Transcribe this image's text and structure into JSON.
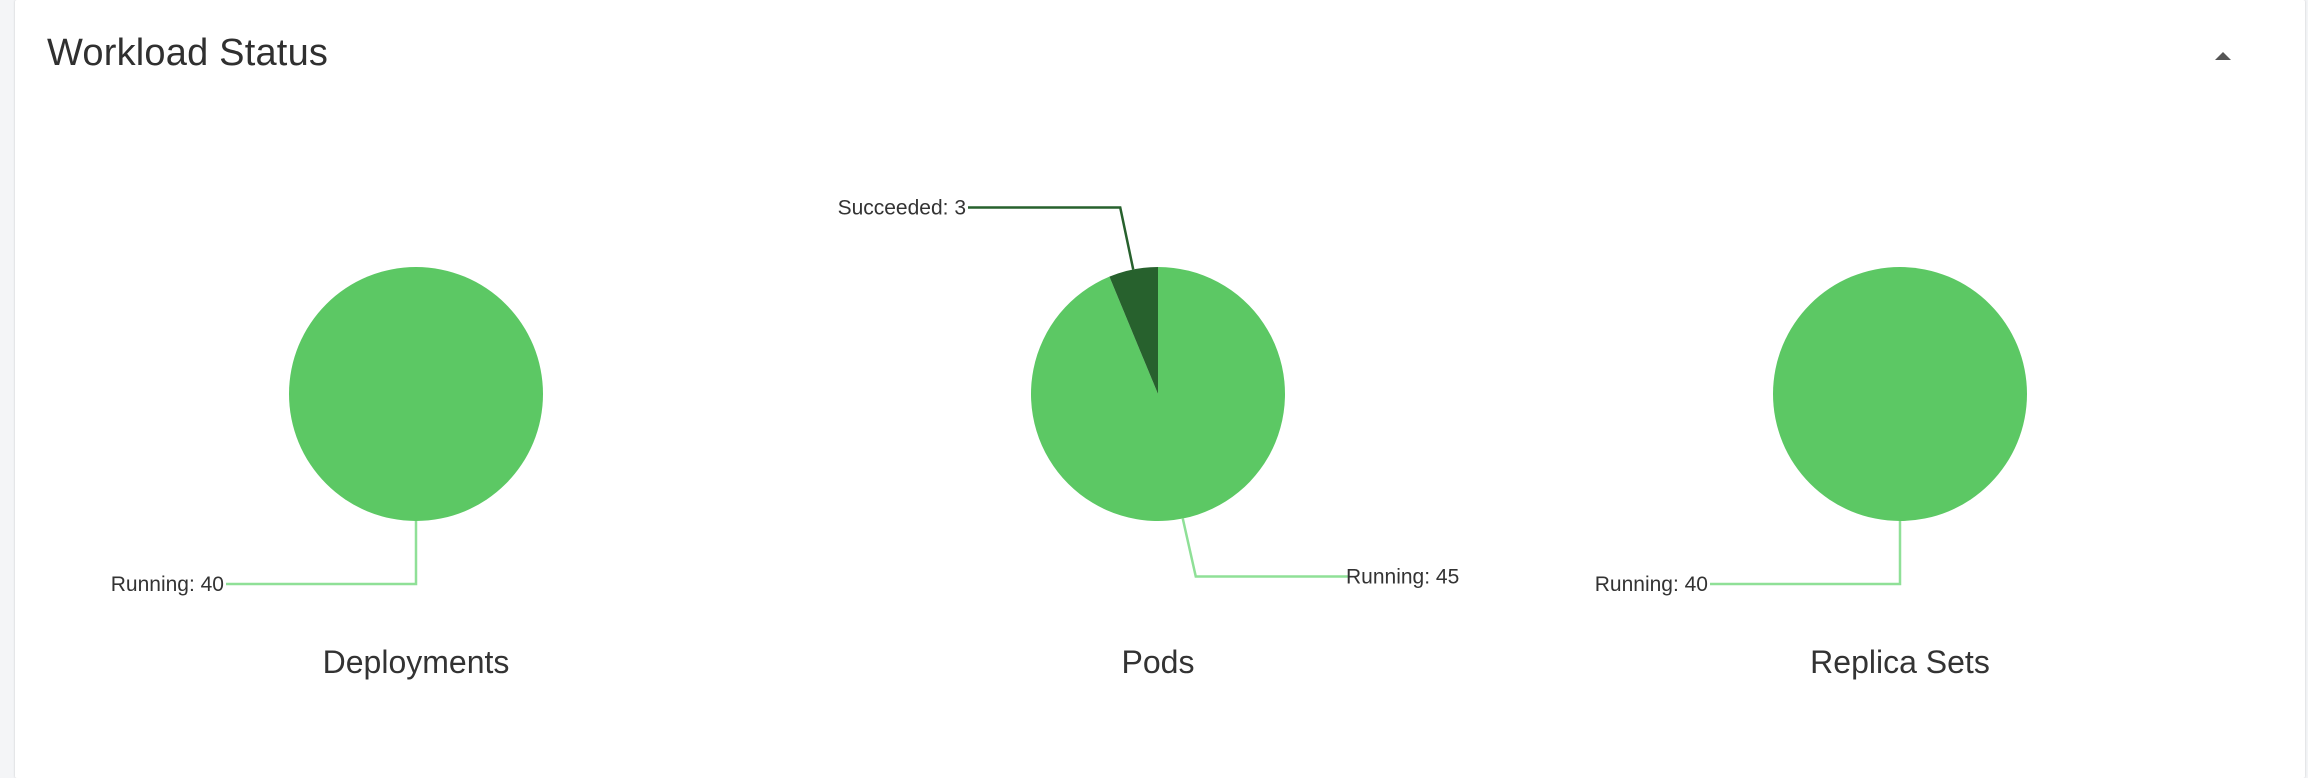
{
  "card": {
    "title": "Workload Status",
    "collapse_icon": "caret-up-icon"
  },
  "colors": {
    "running": "#5cc864",
    "succeeded": "#27612d",
    "running_leader": "#8fe097",
    "succeeded_leader": "#27612d"
  },
  "chart_data": [
    {
      "type": "pie",
      "title": "Deployments",
      "slices": [
        {
          "label": "Running",
          "value": 40
        }
      ]
    },
    {
      "type": "pie",
      "title": "Pods",
      "slices": [
        {
          "label": "Running",
          "value": 45
        },
        {
          "label": "Succeeded",
          "value": 3
        }
      ]
    },
    {
      "type": "pie",
      "title": "Replica Sets",
      "slices": [
        {
          "label": "Running",
          "value": 40
        }
      ]
    }
  ]
}
